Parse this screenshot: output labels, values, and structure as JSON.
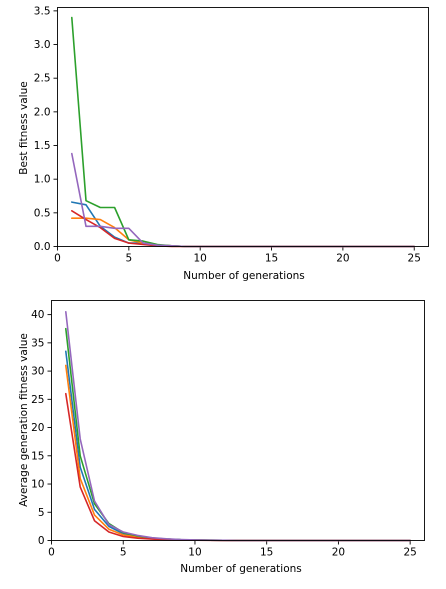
{
  "colors": {
    "blue": "#1f77b4",
    "orange": "#ff7f0e",
    "green": "#2ca02c",
    "red": "#d62728",
    "purple": "#9467bd"
  },
  "chart_data": [
    {
      "type": "line",
      "title": "",
      "xlabel": "Number of generations",
      "ylabel": "Best fitness value",
      "xlim": [
        0,
        26
      ],
      "ylim": [
        0,
        3.55
      ],
      "xticks": [
        0,
        5,
        10,
        15,
        20,
        25
      ],
      "xtick_labels": [
        "0",
        "5",
        "10",
        "15",
        "20",
        "25"
      ],
      "yticks": [
        0,
        0.5,
        1.0,
        1.5,
        2.0,
        2.5,
        3.0,
        3.5
      ],
      "ytick_labels": [
        "0.0",
        "0.5",
        "1.0",
        "1.5",
        "2.0",
        "2.5",
        "3.0",
        "3.5"
      ],
      "grid": false,
      "legend": false,
      "x": [
        1,
        2,
        3,
        4,
        5,
        6,
        7,
        8,
        9,
        10,
        11,
        12,
        13,
        14,
        15,
        16,
        17,
        18,
        19,
        20,
        21,
        22,
        23,
        24,
        25
      ],
      "series": [
        {
          "color": "#1f77b4",
          "values": [
            0.66,
            0.62,
            0.3,
            0.14,
            0.05,
            0.05,
            0.02,
            0.01,
            0,
            0,
            0,
            0,
            0,
            0,
            0,
            0,
            0,
            0,
            0,
            0,
            0,
            0,
            0,
            0,
            0
          ]
        },
        {
          "color": "#ff7f0e",
          "values": [
            0.42,
            0.42,
            0.4,
            0.28,
            0.1,
            0.05,
            0.02,
            0.01,
            0,
            0,
            0,
            0,
            0,
            0,
            0,
            0,
            0,
            0,
            0,
            0,
            0,
            0,
            0,
            0,
            0
          ]
        },
        {
          "color": "#2ca02c",
          "values": [
            3.4,
            0.68,
            0.58,
            0.58,
            0.1,
            0.08,
            0.03,
            0.01,
            0,
            0,
            0,
            0,
            0,
            0,
            0,
            0,
            0,
            0,
            0,
            0,
            0,
            0,
            0,
            0,
            0
          ]
        },
        {
          "color": "#d62728",
          "values": [
            0.53,
            0.4,
            0.28,
            0.12,
            0.05,
            0.03,
            0.01,
            0,
            0,
            0,
            0,
            0,
            0,
            0,
            0,
            0,
            0,
            0,
            0,
            0,
            0,
            0,
            0,
            0,
            0
          ]
        },
        {
          "color": "#9467bd",
          "values": [
            1.38,
            0.3,
            0.3,
            0.27,
            0.27,
            0.05,
            0.02,
            0.01,
            0,
            0,
            0,
            0,
            0,
            0,
            0,
            0,
            0,
            0,
            0,
            0,
            0,
            0,
            0,
            0,
            0
          ]
        }
      ]
    },
    {
      "type": "line",
      "title": "",
      "xlabel": "Number of generations",
      "ylabel": "Average generation fitness value",
      "xlim": [
        0,
        26
      ],
      "ylim": [
        0,
        42.5
      ],
      "xticks": [
        0,
        5,
        10,
        15,
        20,
        25
      ],
      "xtick_labels": [
        "0",
        "5",
        "10",
        "15",
        "20",
        "25"
      ],
      "yticks": [
        0,
        5,
        10,
        15,
        20,
        25,
        30,
        35,
        40
      ],
      "ytick_labels": [
        "0",
        "5",
        "10",
        "15",
        "20",
        "25",
        "30",
        "35",
        "40"
      ],
      "grid": false,
      "legend": false,
      "x": [
        1,
        2,
        3,
        4,
        5,
        6,
        7,
        8,
        9,
        10,
        11,
        12,
        13,
        14,
        15,
        16,
        17,
        18,
        19,
        20,
        21,
        22,
        23,
        24,
        25
      ],
      "series": [
        {
          "color": "#1f77b4",
          "values": [
            33.5,
            13.0,
            5.5,
            2.5,
            1.2,
            0.7,
            0.4,
            0.25,
            0.15,
            0.1,
            0.05,
            0.03,
            0,
            0,
            0,
            0,
            0,
            0,
            0,
            0,
            0,
            0,
            0,
            0,
            0
          ]
        },
        {
          "color": "#ff7f0e",
          "values": [
            31.0,
            11.0,
            4.5,
            2.0,
            1.0,
            0.6,
            0.35,
            0.2,
            0.12,
            0.08,
            0.05,
            0.03,
            0,
            0,
            0,
            0,
            0,
            0,
            0,
            0,
            0,
            0,
            0,
            0,
            0
          ]
        },
        {
          "color": "#2ca02c",
          "values": [
            37.5,
            15.0,
            6.5,
            3.0,
            1.4,
            0.8,
            0.45,
            0.25,
            0.15,
            0.1,
            0.05,
            0.03,
            0,
            0,
            0,
            0,
            0,
            0,
            0,
            0,
            0,
            0,
            0,
            0,
            0
          ]
        },
        {
          "color": "#d62728",
          "values": [
            26.0,
            9.5,
            3.5,
            1.5,
            0.7,
            0.4,
            0.25,
            0.15,
            0.1,
            0.05,
            0.03,
            0.02,
            0,
            0,
            0,
            0,
            0,
            0,
            0,
            0,
            0,
            0,
            0,
            0,
            0
          ]
        },
        {
          "color": "#9467bd",
          "values": [
            40.5,
            18.0,
            7.0,
            2.8,
            1.5,
            0.9,
            0.5,
            0.3,
            0.18,
            0.1,
            0.06,
            0.03,
            0,
            0,
            0,
            0,
            0,
            0,
            0,
            0,
            0,
            0,
            0,
            0,
            0
          ]
        }
      ]
    }
  ]
}
